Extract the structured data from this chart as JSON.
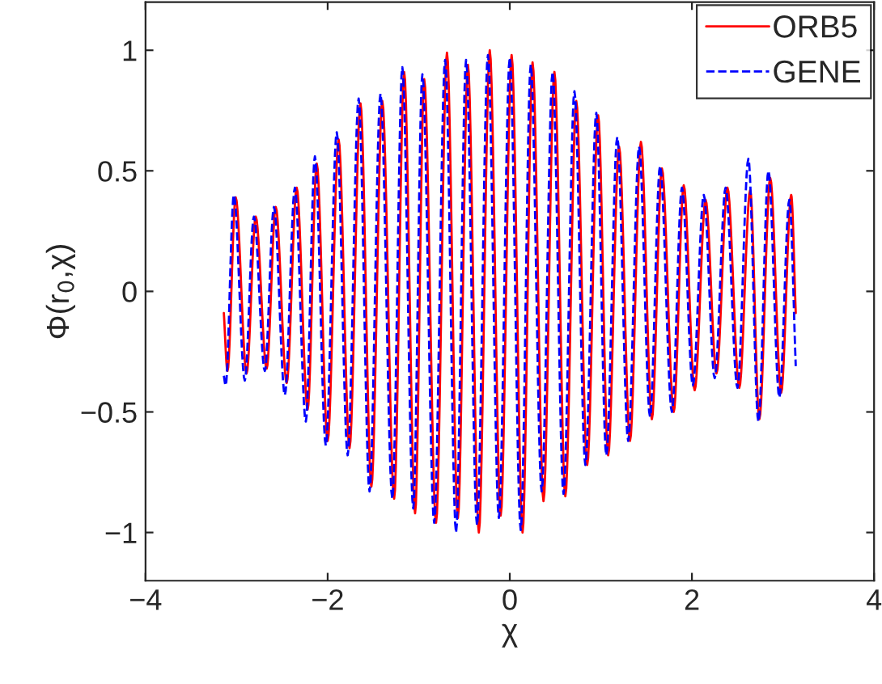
{
  "chart_data": {
    "type": "line",
    "xlabel": "χ",
    "ylabel": "Φ(r$_{0}$,χ)",
    "x": [
      -3.14,
      -3.1,
      -3.01,
      -2.89,
      -2.79,
      -2.67,
      -2.57,
      -2.45,
      -2.34,
      -2.22,
      -2.12,
      -2.0,
      -1.88,
      -1.76,
      -1.64,
      -1.52,
      -1.4,
      -1.27,
      -1.16,
      -1.04,
      -0.94,
      -0.81,
      -0.69,
      -0.57,
      -0.46,
      -0.34,
      -0.22,
      -0.1,
      0.02,
      0.14,
      0.25,
      0.37,
      0.49,
      0.61,
      0.73,
      0.85,
      0.97,
      1.08,
      1.2,
      1.32,
      1.44,
      1.56,
      1.67,
      1.8,
      1.91,
      2.03,
      2.15,
      2.27,
      2.39,
      2.52,
      2.64,
      2.74,
      2.86,
      2.98,
      3.09,
      3.14
    ],
    "series": [
      {
        "name": "ORB5",
        "color": "#ff0000",
        "line_style": "solid",
        "values": [
          -0.09,
          -0.33,
          0.39,
          -0.34,
          0.31,
          -0.32,
          0.35,
          -0.38,
          0.43,
          -0.49,
          0.53,
          -0.62,
          0.63,
          -0.65,
          0.78,
          -0.81,
          0.79,
          -0.86,
          0.91,
          -0.92,
          0.88,
          -0.96,
          0.99,
          -0.94,
          0.94,
          -1.0,
          1.0,
          -0.93,
          0.98,
          -1.0,
          0.95,
          -0.87,
          0.91,
          -0.85,
          0.79,
          -0.72,
          0.73,
          -0.68,
          0.6,
          -0.62,
          0.62,
          -0.53,
          0.51,
          -0.5,
          0.44,
          -0.41,
          0.38,
          -0.34,
          0.43,
          -0.4,
          0.42,
          -0.53,
          0.47,
          -0.42,
          0.4,
          -0.09
        ]
      },
      {
        "name": "GENE",
        "color": "#0000ff",
        "line_style": "dashed",
        "x": [
          -3.14,
          -3.12,
          -3.03,
          -2.91,
          -2.81,
          -2.69,
          -2.59,
          -2.47,
          -2.36,
          -2.24,
          -2.14,
          -2.02,
          -1.9,
          -1.78,
          -1.66,
          -1.54,
          -1.42,
          -1.29,
          -1.18,
          -1.06,
          -0.96,
          -0.83,
          -0.71,
          -0.59,
          -0.48,
          -0.36,
          -0.24,
          -0.12,
          0.0,
          0.12,
          0.23,
          0.35,
          0.47,
          0.59,
          0.71,
          0.83,
          0.95,
          1.06,
          1.18,
          1.3,
          1.42,
          1.54,
          1.65,
          1.78,
          1.89,
          2.01,
          2.13,
          2.25,
          2.37,
          2.5,
          2.62,
          2.73,
          2.84,
          2.96,
          3.07,
          3.14
        ],
        "values": [
          -0.35,
          -0.39,
          0.4,
          -0.37,
          0.31,
          -0.33,
          0.35,
          -0.43,
          0.43,
          -0.54,
          0.56,
          -0.64,
          0.66,
          -0.68,
          0.8,
          -0.83,
          0.82,
          -0.86,
          0.93,
          -0.9,
          0.9,
          -0.96,
          0.96,
          -1.0,
          0.96,
          -0.97,
          0.98,
          -0.94,
          0.97,
          -0.99,
          0.94,
          -0.83,
          0.91,
          -0.84,
          0.83,
          -0.72,
          0.74,
          -0.68,
          0.64,
          -0.62,
          0.6,
          -0.52,
          0.52,
          -0.5,
          0.43,
          -0.39,
          0.4,
          -0.36,
          0.43,
          -0.4,
          0.55,
          -0.54,
          0.5,
          -0.44,
          0.38,
          -0.31
        ]
      }
    ],
    "xlim": [
      -4,
      4
    ],
    "ylim": [
      -1.2,
      1.2
    ],
    "xticks": [
      -4,
      -2,
      0,
      2,
      4
    ],
    "yticks": [
      -1,
      -0.5,
      0,
      0.5,
      1
    ],
    "grid": false,
    "legend": "top right",
    "marker": "none"
  }
}
